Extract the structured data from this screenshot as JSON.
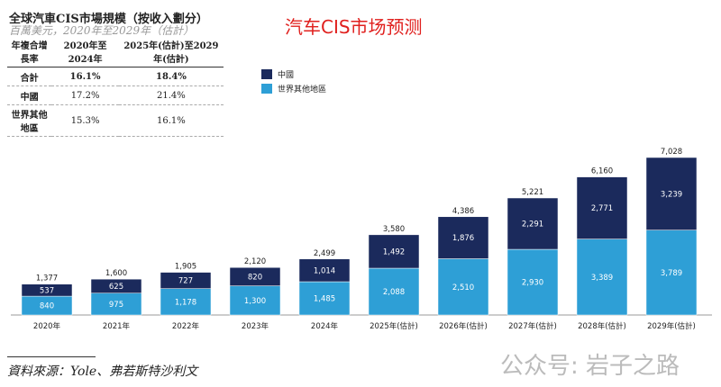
{
  "header": {
    "title": "全球汽車CIS市場規模（按收入劃分）",
    "subtitle": "百萬美元，2020年至2029年（估計）",
    "red_title": "汽车CIS市场预测"
  },
  "cagr_table": {
    "headers": [
      "年複合增長率",
      "2020年至2024年",
      "2025年(估計)至2029年(估計)"
    ],
    "rows": [
      [
        "合計",
        "16.1%",
        "18.4%"
      ],
      [
        "中國",
        "17.2%",
        "21.4%"
      ],
      [
        "世界其他地區",
        "15.3%",
        "16.1%"
      ]
    ]
  },
  "source": "資料來源：Yole、弗若斯特沙利文",
  "watermark": "公众号: 岩子之路",
  "chart_data": {
    "type": "bar",
    "stacked": true,
    "categories": [
      "2020年",
      "2021年",
      "2022年",
      "2023年",
      "2024年",
      "2025年(估計)",
      "2026年(估計)",
      "2027年(估計)",
      "2028年(估計)",
      "2029年(估計)"
    ],
    "series": [
      {
        "name": "世界其他地區",
        "color": "#2e9fd6",
        "values": [
          840,
          975,
          1178,
          1300,
          1485,
          2088,
          2510,
          2930,
          3389,
          3789
        ]
      },
      {
        "name": "中國",
        "color": "#1b2a5c",
        "values": [
          537,
          625,
          727,
          820,
          1014,
          1492,
          1876,
          2291,
          2771,
          3239
        ]
      }
    ],
    "totals": [
      1377,
      1600,
      1905,
      2120,
      2499,
      3580,
      4386,
      5221,
      6160,
      7028
    ],
    "legend_position": "top-left",
    "grid": false
  }
}
